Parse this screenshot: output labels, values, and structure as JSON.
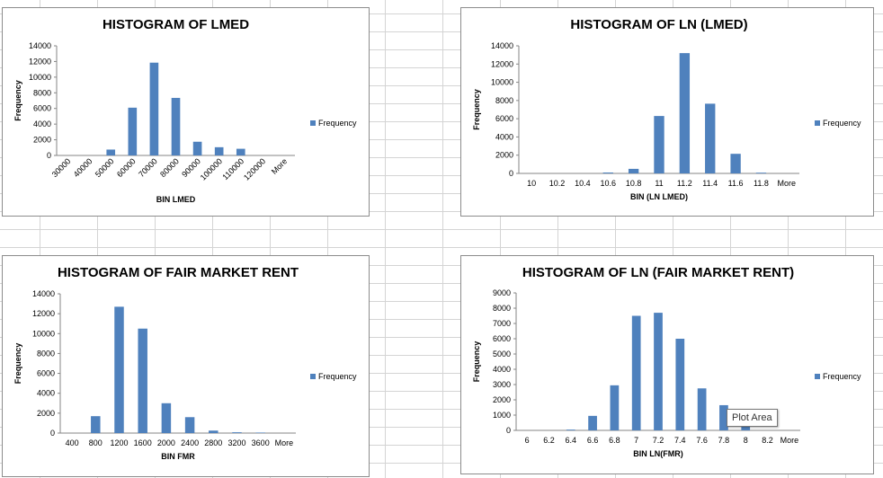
{
  "colors": {
    "bar": "#4f81bd",
    "legend": "#4f81bd"
  },
  "tooltip": "Plot Area",
  "chart_data": [
    {
      "type": "bar",
      "title": "HISTOGRAM OF LMED",
      "xlabel": "BIN LMED",
      "ylabel": "Frequency",
      "categories": [
        "30000",
        "40000",
        "50000",
        "60000",
        "70000",
        "80000",
        "90000",
        "100000",
        "110000",
        "120000",
        "More"
      ],
      "series": [
        {
          "name": "Frequency",
          "values": [
            0,
            0,
            750,
            6100,
            11850,
            7350,
            1750,
            1050,
            850,
            0,
            0
          ]
        }
      ],
      "ylim": [
        0,
        14000
      ],
      "yticks": [
        "0",
        "2000",
        "4000",
        "6000",
        "8000",
        "10000",
        "12000",
        "14000"
      ],
      "rotated_x_labels": true,
      "legend": "right"
    },
    {
      "type": "bar",
      "title": "HISTOGRAM OF LN (LMED)",
      "xlabel": "BIN (LN LMED)",
      "ylabel": "Frequency",
      "categories": [
        "10",
        "10.2",
        "10.4",
        "10.6",
        "10.8",
        "11",
        "11.2",
        "11.4",
        "11.6",
        "11.8",
        "More"
      ],
      "series": [
        {
          "name": "Frequency",
          "values": [
            0,
            0,
            0,
            100,
            500,
            6300,
            13200,
            7650,
            2150,
            80,
            0
          ]
        }
      ],
      "ylim": [
        0,
        14000
      ],
      "yticks": [
        "0",
        "2000",
        "4000",
        "6000",
        "8000",
        "10000",
        "12000",
        "14000"
      ],
      "rotated_x_labels": false,
      "legend": "right"
    },
    {
      "type": "bar",
      "title": "HISTOGRAM OF FAIR MARKET RENT",
      "xlabel": "BIN FMR",
      "ylabel": "Frequency",
      "categories": [
        "400",
        "800",
        "1200",
        "1600",
        "2000",
        "2400",
        "2800",
        "3200",
        "3600",
        "More"
      ],
      "series": [
        {
          "name": "Frequency",
          "values": [
            0,
            1700,
            12700,
            10500,
            3000,
            1600,
            250,
            80,
            50,
            0
          ]
        }
      ],
      "ylim": [
        0,
        14000
      ],
      "yticks": [
        "0",
        "2000",
        "4000",
        "6000",
        "8000",
        "10000",
        "12000",
        "14000"
      ],
      "rotated_x_labels": false,
      "legend": "right"
    },
    {
      "type": "bar",
      "title": "HISTOGRAM OF LN (FAIR MARKET RENT)",
      "xlabel": "BIN LN(FMR)",
      "ylabel": "Frequency",
      "categories": [
        "6",
        "6.2",
        "6.4",
        "6.6",
        "6.8",
        "7",
        "7.2",
        "7.4",
        "7.6",
        "7.8",
        "8",
        "8.2",
        "More"
      ],
      "series": [
        {
          "name": "Frequency",
          "values": [
            0,
            0,
            50,
            950,
            2950,
            7500,
            7700,
            6000,
            2750,
            1650,
            300,
            0,
            0
          ]
        }
      ],
      "ylim": [
        0,
        9000
      ],
      "yticks": [
        "0",
        "1000",
        "2000",
        "3000",
        "4000",
        "5000",
        "6000",
        "7000",
        "8000",
        "9000"
      ],
      "rotated_x_labels": false,
      "legend": "right"
    }
  ]
}
